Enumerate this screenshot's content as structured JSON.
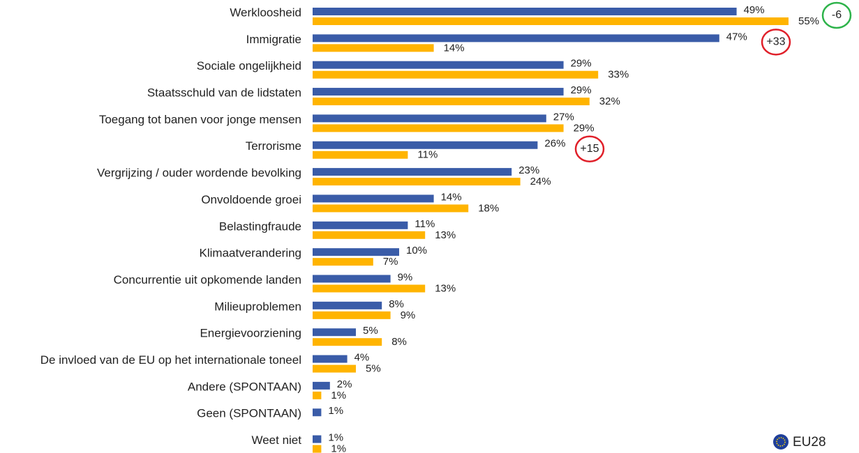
{
  "chart_data": {
    "type": "bar",
    "orientation": "horizontal",
    "categories": [
      "Werkloosheid",
      "Immigratie",
      "Sociale ongelijkheid",
      "Staatsschuld van de lidstaten",
      "Toegang tot banen voor jonge mensen",
      "Terrorisme",
      "Vergrijzing / ouder wordende bevolking",
      "Onvoldoende groei",
      "Belastingfraude",
      "Klimaatverandering",
      "Concurrentie uit opkomende landen",
      "Milieuproblemen",
      "Energievoorziening",
      "De invloed van de EU op het internationale toneel",
      "Andere (SPONTAAN)",
      "Geen (SPONTAAN)",
      "Weet niet"
    ],
    "series": [
      {
        "color": "#3a5ca8",
        "values": [
          49,
          47,
          29,
          29,
          27,
          26,
          23,
          14,
          11,
          10,
          9,
          8,
          5,
          4,
          2,
          1,
          1
        ],
        "value_labels": [
          "49%",
          "47%",
          "29%",
          "29%",
          "27%",
          "26%",
          "23%",
          "14%",
          "11%",
          "10%",
          "9%",
          "8%",
          "5%",
          "4%",
          "2%",
          "1%",
          "1%"
        ]
      },
      {
        "color": "#ffb400",
        "values": [
          55,
          14,
          33,
          32,
          29,
          11,
          24,
          18,
          13,
          7,
          13,
          9,
          8,
          5,
          1,
          null,
          1
        ],
        "value_labels": [
          "55%",
          "14%",
          "33%",
          "32%",
          "29%",
          "11%",
          "24%",
          "18%",
          "13%",
          "7%",
          "13%",
          "9%",
          "8%",
          "5%",
          "1%",
          null,
          "1%"
        ]
      }
    ],
    "annotations": [
      {
        "text": "-6",
        "color": "#2db34a"
      },
      {
        "text": "+33",
        "color": "#e0202a"
      },
      {
        "text": "+15",
        "color": "#e0202a"
      }
    ],
    "legend": {
      "label": "EU28",
      "position": "bottom-right"
    }
  }
}
